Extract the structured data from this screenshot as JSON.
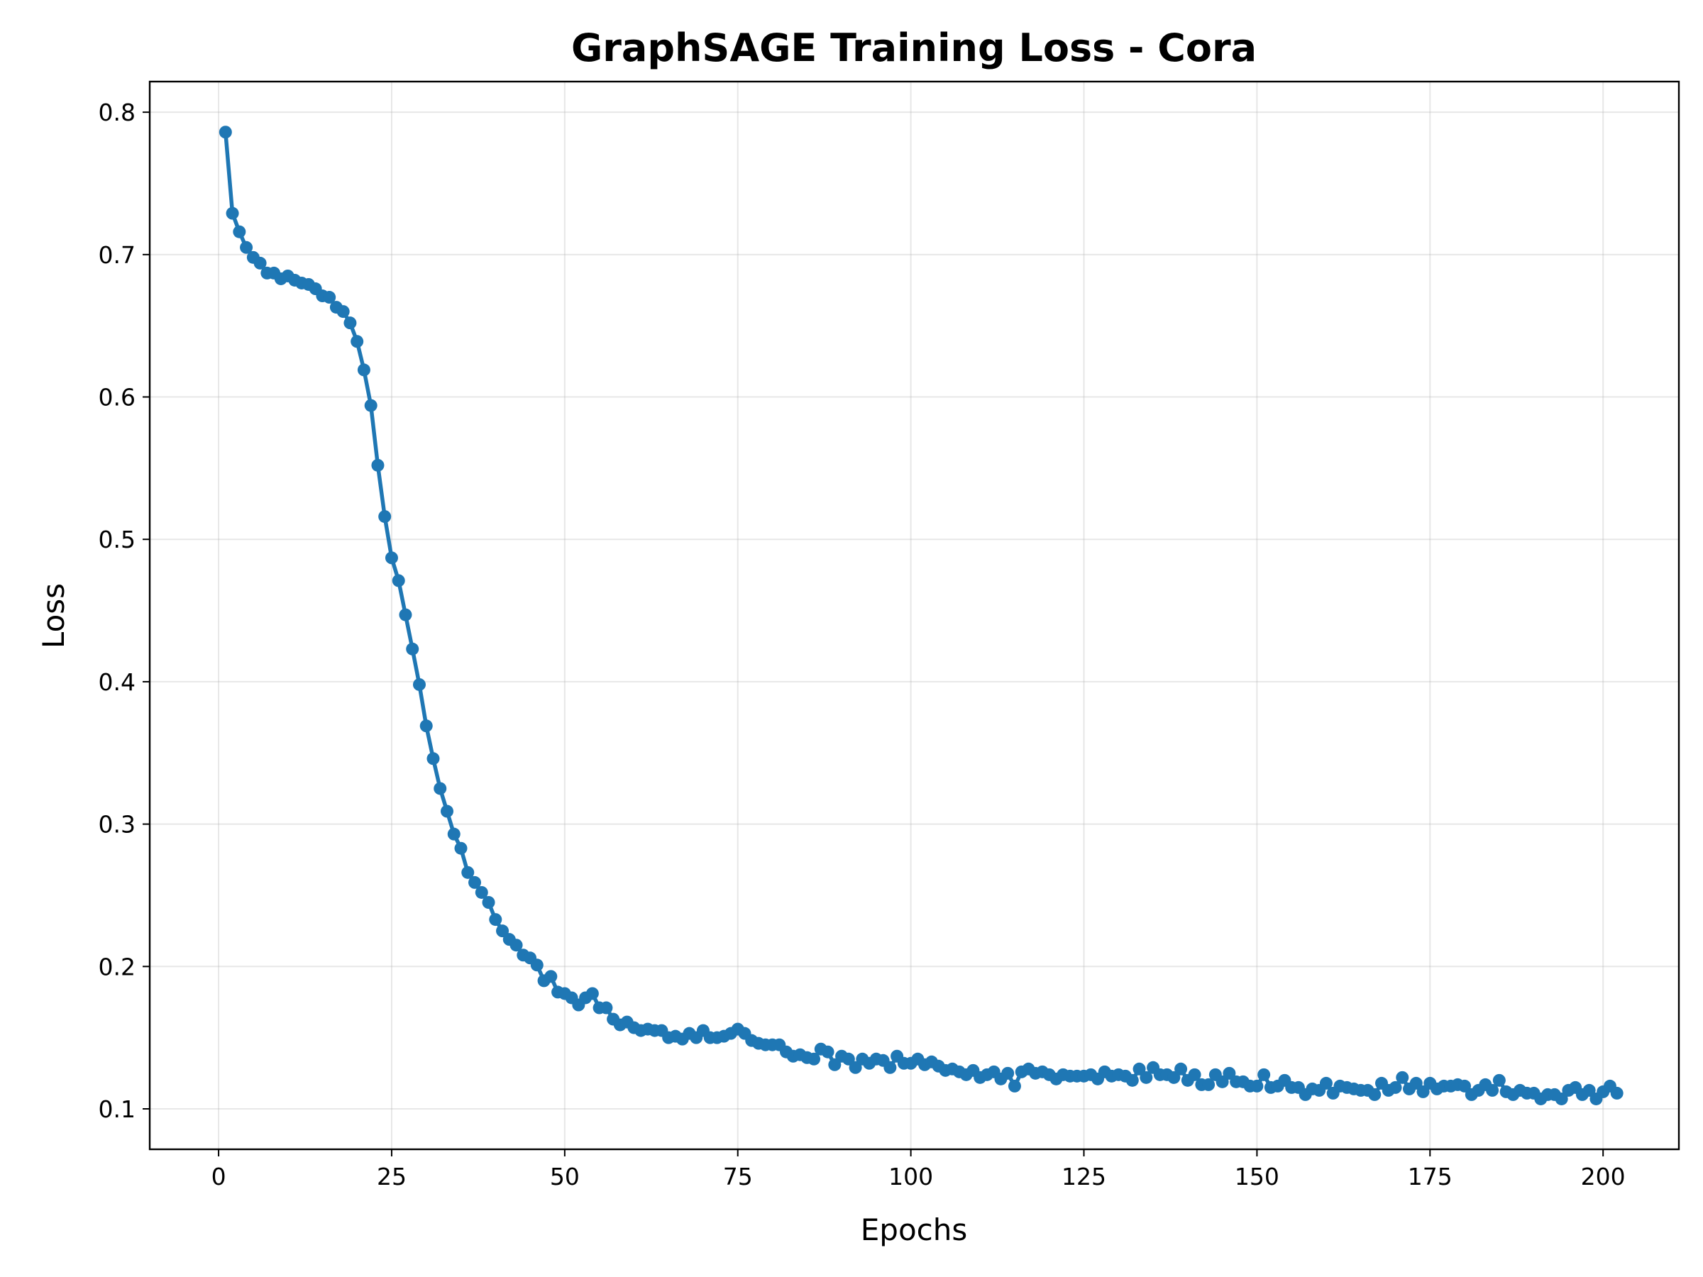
{
  "chart_data": {
    "type": "line",
    "title": "GraphSAGE Training Loss - Cora",
    "xlabel": "Epochs",
    "ylabel": "Loss",
    "xlim": [
      -9.95,
      210.95
    ],
    "ylim": [
      0.0716,
      0.8215
    ],
    "xticks": [
      0,
      25,
      50,
      75,
      100,
      125,
      150,
      175,
      200
    ],
    "yticks": [
      0.1,
      0.2,
      0.3,
      0.4,
      0.5,
      0.6,
      0.7,
      0.8
    ],
    "grid": true,
    "legend": "none",
    "marker": "circle",
    "color": "#1f77b4",
    "series": [
      {
        "x_start": 1,
        "x_step": 1,
        "values": [
          0.786,
          0.729,
          0.716,
          0.705,
          0.698,
          0.694,
          0.687,
          0.687,
          0.683,
          0.685,
          0.682,
          0.68,
          0.679,
          0.676,
          0.671,
          0.67,
          0.663,
          0.66,
          0.652,
          0.639,
          0.619,
          0.594,
          0.552,
          0.516,
          0.487,
          0.471,
          0.447,
          0.423,
          0.398,
          0.369,
          0.346,
          0.325,
          0.309,
          0.293,
          0.283,
          0.266,
          0.259,
          0.252,
          0.245,
          0.233,
          0.225,
          0.219,
          0.215,
          0.208,
          0.206,
          0.201,
          0.19,
          0.193,
          0.182,
          0.181,
          0.178,
          0.173,
          0.178,
          0.181,
          0.171,
          0.171,
          0.163,
          0.159,
          0.161,
          0.157,
          0.155,
          0.156,
          0.155,
          0.155,
          0.15,
          0.151,
          0.149,
          0.153,
          0.15,
          0.155,
          0.15,
          0.15,
          0.151,
          0.153,
          0.156,
          0.153,
          0.148,
          0.146,
          0.145,
          0.145,
          0.145,
          0.14,
          0.137,
          0.138,
          0.136,
          0.135,
          0.142,
          0.14,
          0.131,
          0.137,
          0.135,
          0.129,
          0.135,
          0.132,
          0.135,
          0.134,
          0.129,
          0.137,
          0.132,
          0.132,
          0.135,
          0.131,
          0.133,
          0.13,
          0.127,
          0.128,
          0.126,
          0.124,
          0.127,
          0.122,
          0.124,
          0.126,
          0.121,
          0.125,
          0.116,
          0.126,
          0.128,
          0.125,
          0.126,
          0.124,
          0.121,
          0.124,
          0.123,
          0.123,
          0.123,
          0.124,
          0.121,
          0.126,
          0.123,
          0.124,
          0.123,
          0.12,
          0.128,
          0.122,
          0.129,
          0.124,
          0.124,
          0.122,
          0.128,
          0.12,
          0.124,
          0.117,
          0.117,
          0.124,
          0.119,
          0.125,
          0.119,
          0.119,
          0.116,
          0.116,
          0.124,
          0.115,
          0.116,
          0.12,
          0.115,
          0.115,
          0.11,
          0.114,
          0.113,
          0.118,
          0.111,
          0.116,
          0.115,
          0.114,
          0.113,
          0.113,
          0.11,
          0.118,
          0.113,
          0.115,
          0.122,
          0.114,
          0.118,
          0.112,
          0.118,
          0.114,
          0.116,
          0.116,
          0.117,
          0.116,
          0.11,
          0.113,
          0.117,
          0.113,
          0.12,
          0.112,
          0.11,
          0.113,
          0.111,
          0.111,
          0.107,
          0.11,
          0.11,
          0.107,
          0.113,
          0.115,
          0.11,
          0.113,
          0.107,
          0.112,
          0.116,
          0.111
        ]
      }
    ]
  }
}
